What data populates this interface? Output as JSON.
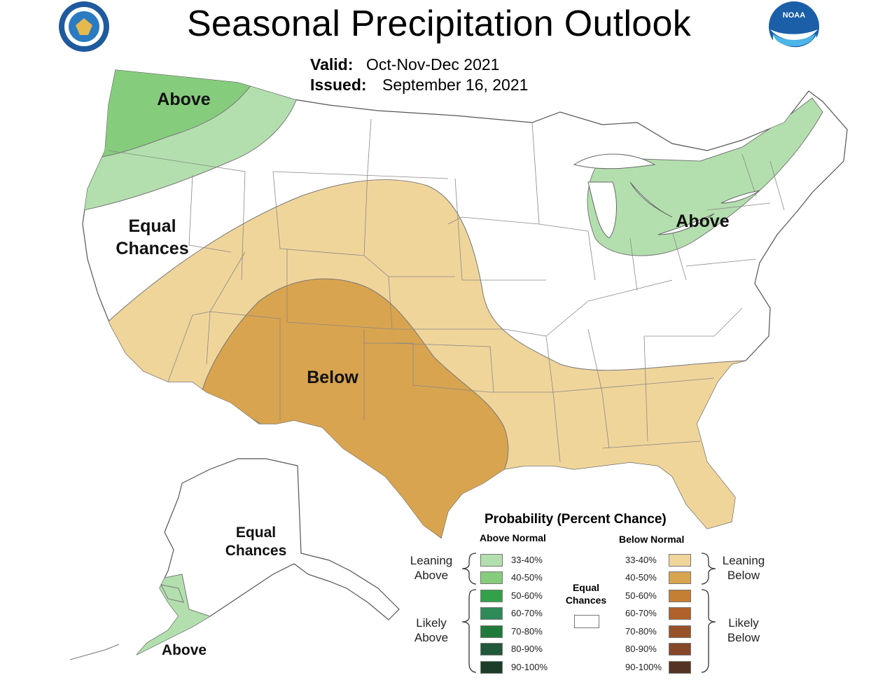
{
  "header": {
    "title": "Seasonal Precipitation Outlook",
    "valid_label": "Valid:",
    "valid_value": "Oct-Nov-Dec 2021",
    "issued_label": "Issued:",
    "issued_value": "September 16, 2021"
  },
  "logos": {
    "doc_seal": "department-of-commerce-seal",
    "noaa": "NOAA"
  },
  "regions": {
    "northwest_above": "Above",
    "west_equal": [
      "Equal",
      "Chances"
    ],
    "great_lakes_above": "Above",
    "southwest_below": "Below",
    "alaska_equal": [
      "Equal",
      "Chances"
    ],
    "alaska_above": "Above"
  },
  "legend": {
    "title": "Probability (Percent Chance)",
    "above_header": "Above Normal",
    "below_header": "Below Normal",
    "leaning_above": [
      "Leaning",
      "Above"
    ],
    "likely_above": [
      "Likely",
      "Above"
    ],
    "leaning_below": [
      "Leaning",
      "Below"
    ],
    "likely_below": [
      "Likely",
      "Below"
    ],
    "equal_chances": [
      "Equal",
      "Chances"
    ],
    "above_ranges": [
      "33-40%",
      "40-50%",
      "50-60%",
      "60-70%",
      "70-80%",
      "80-90%",
      "90-100%"
    ],
    "below_ranges": [
      "33-40%",
      "40-50%",
      "50-60%",
      "60-70%",
      "70-80%",
      "80-90%",
      "90-100%"
    ],
    "above_colors": [
      "#b3dfae",
      "#86cc7d",
      "#33a04a",
      "#2e8a57",
      "#1f7a3a",
      "#21583a",
      "#1c3d28"
    ],
    "below_colors": [
      "#f0d59b",
      "#d9a44f",
      "#c47f32",
      "#b0612a",
      "#985229",
      "#86472a",
      "#553322"
    ],
    "equal_color": "#ffffff"
  },
  "map_colors": {
    "above_33_40": "#b3dfae",
    "above_40_50": "#86cc7d",
    "below_33_40": "#f0d59b",
    "below_40_50": "#d9a44f",
    "boundary": "#777777"
  }
}
